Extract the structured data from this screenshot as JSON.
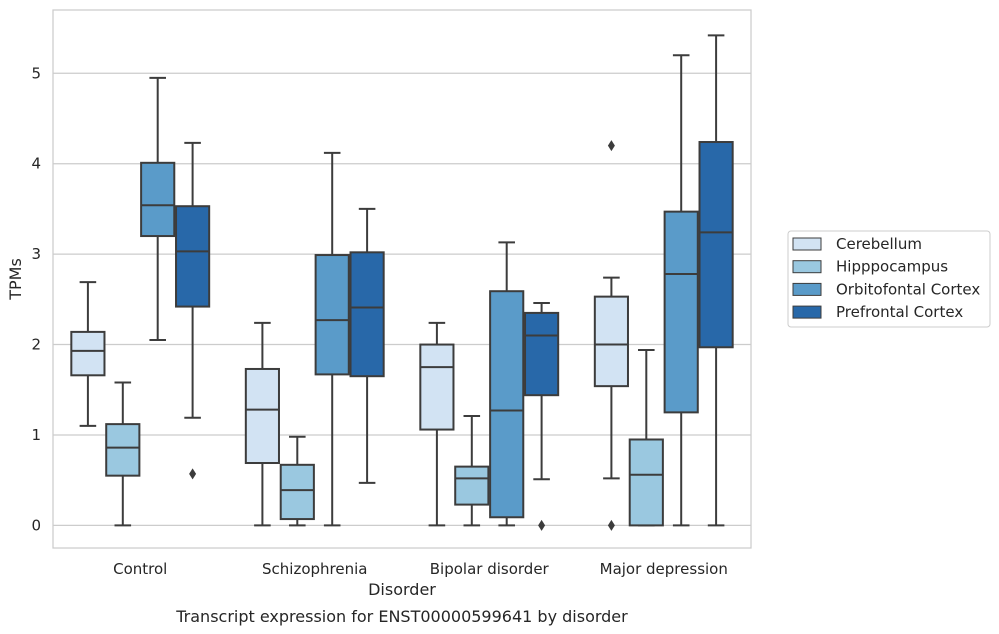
{
  "chart_data": {
    "type": "boxplot",
    "caption": "Transcript expression for ENST00000599641 by disorder",
    "xlabel": "Disorder",
    "ylabel": "TPMs",
    "ylim": [
      -0.25,
      5.7
    ],
    "yticks": [
      0,
      1,
      2,
      3,
      4,
      5
    ],
    "grid": "horizontal",
    "legend_position": "right",
    "categories": [
      "Control",
      "Schizophrenia",
      "Bipolar disorder",
      "Major depression"
    ],
    "series": [
      {
        "name": "Cerebellum",
        "color": "#d2e3f3",
        "boxes": [
          {
            "whislo": 1.1,
            "q1": 1.66,
            "med": 1.93,
            "q3": 2.14,
            "whishi": 2.69,
            "fliers": []
          },
          {
            "whislo": 0.0,
            "q1": 0.69,
            "med": 1.28,
            "q3": 1.73,
            "whishi": 2.24,
            "fliers": []
          },
          {
            "whislo": 0.0,
            "q1": 1.06,
            "med": 1.75,
            "q3": 2.0,
            "whishi": 2.24,
            "fliers": []
          },
          {
            "whislo": 0.52,
            "q1": 1.54,
            "med": 2.0,
            "q3": 2.53,
            "whishi": 2.74,
            "fliers": [
              0.0,
              4.2
            ]
          }
        ]
      },
      {
        "name": "Hipppocampus",
        "color": "#9ac8e0",
        "boxes": [
          {
            "whislo": 0.0,
            "q1": 0.55,
            "med": 0.86,
            "q3": 1.12,
            "whishi": 1.58,
            "fliers": []
          },
          {
            "whislo": 0.0,
            "q1": 0.07,
            "med": 0.39,
            "q3": 0.67,
            "whishi": 0.98,
            "fliers": []
          },
          {
            "whislo": 0.0,
            "q1": 0.23,
            "med": 0.52,
            "q3": 0.65,
            "whishi": 1.21,
            "fliers": []
          },
          {
            "whislo": 0.0,
            "q1": 0.0,
            "med": 0.56,
            "q3": 0.95,
            "whishi": 1.94,
            "fliers": []
          }
        ]
      },
      {
        "name": "Orbitofontal Cortex",
        "color": "#5a9bc9",
        "boxes": [
          {
            "whislo": 2.05,
            "q1": 3.2,
            "med": 3.54,
            "q3": 4.01,
            "whishi": 4.95,
            "fliers": []
          },
          {
            "whislo": 0.0,
            "q1": 1.67,
            "med": 2.27,
            "q3": 2.99,
            "whishi": 4.12,
            "fliers": []
          },
          {
            "whislo": 0.0,
            "q1": 0.09,
            "med": 1.27,
            "q3": 2.59,
            "whishi": 3.13,
            "fliers": []
          },
          {
            "whislo": 0.0,
            "q1": 1.25,
            "med": 2.78,
            "q3": 3.47,
            "whishi": 5.2,
            "fliers": []
          }
        ]
      },
      {
        "name": "Prefrontal Cortex",
        "color": "#2868a9",
        "boxes": [
          {
            "whislo": 1.19,
            "q1": 2.42,
            "med": 3.03,
            "q3": 3.53,
            "whishi": 4.23,
            "fliers": [
              0.57
            ]
          },
          {
            "whislo": 0.47,
            "q1": 1.65,
            "med": 2.41,
            "q3": 3.02,
            "whishi": 3.5,
            "fliers": []
          },
          {
            "whislo": 0.51,
            "q1": 1.44,
            "med": 2.1,
            "q3": 2.35,
            "whishi": 2.46,
            "fliers": [
              0.0
            ]
          },
          {
            "whislo": 0.0,
            "q1": 1.97,
            "med": 3.24,
            "q3": 4.24,
            "whishi": 5.42,
            "fliers": []
          }
        ]
      }
    ]
  }
}
